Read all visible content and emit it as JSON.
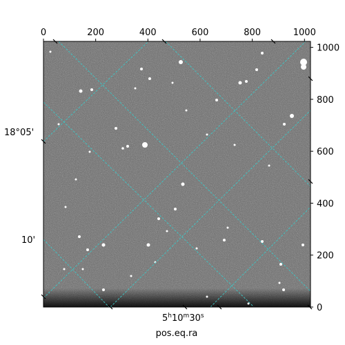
{
  "chart_data": {
    "type": "image",
    "xlabel": "pos.eq.ra",
    "pixel_axes": {
      "x_range": [
        0,
        1023
      ],
      "y_range": [
        0,
        1023
      ],
      "top_ticks": [
        "0",
        "200",
        "400",
        "600",
        "800",
        "1000"
      ],
      "right_ticks": [
        "0",
        "200",
        "400",
        "600",
        "800",
        "1000"
      ]
    },
    "world_axes": {
      "ra_label": {
        "h": "5",
        "m": "10",
        "s": "30"
      },
      "dec_labels": [
        "18°05'",
        "10'"
      ]
    },
    "grid": true,
    "grid_color": "#3cc8c8",
    "colormap": "gray"
  }
}
